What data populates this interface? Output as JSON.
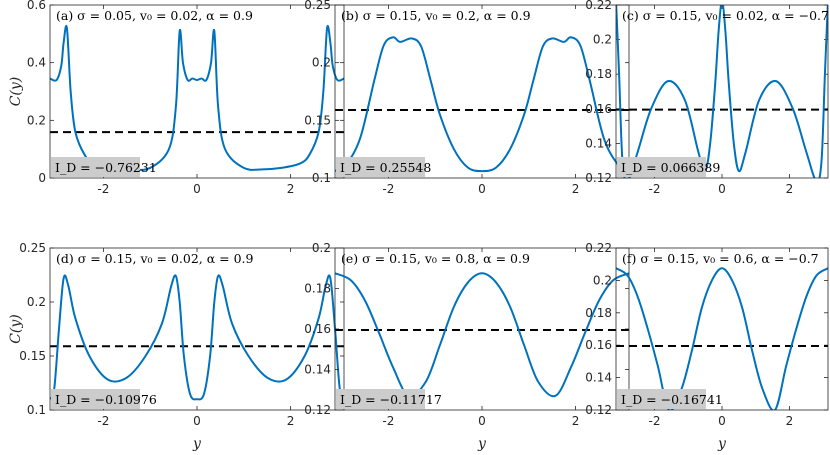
{
  "xlabel": "y",
  "ylabel": "C(y)",
  "colors": {
    "curve": "#0072BD",
    "reference": "#000000",
    "id_box": "#cccccc"
  },
  "chart_data": [
    {
      "type": "line",
      "title": "(a) σ = 0.05,  v₀ = 0.02,  α = 0.9",
      "id_label": "I_D = −0.76231",
      "xlim": [
        -3.1416,
        3.1416
      ],
      "ylim": [
        0,
        0.6
      ],
      "xticks": [
        -2,
        0,
        2
      ],
      "yticks": [
        0,
        0.2,
        0.4,
        0.6
      ],
      "ytick_labels": [
        "0",
        "0.2",
        "0.4",
        "0.6"
      ],
      "reference_y": 0.159,
      "x": [
        -3.14,
        -3.0,
        -2.9,
        -2.85,
        -2.78,
        -2.7,
        -2.6,
        -2.4,
        -2.2,
        -1.8,
        -1.4,
        -1.0,
        -0.6,
        -0.45,
        -0.37,
        -0.3,
        -0.2,
        -0.1,
        0,
        0.1,
        0.2,
        0.3,
        0.37,
        0.45,
        0.6,
        1.0,
        1.4,
        1.8,
        2.2,
        2.4,
        2.6,
        2.7,
        2.78,
        2.85,
        2.9,
        3.0,
        3.14
      ],
      "y": [
        0.345,
        0.34,
        0.39,
        0.47,
        0.52,
        0.3,
        0.16,
        0.08,
        0.05,
        0.035,
        0.03,
        0.035,
        0.1,
        0.25,
        0.51,
        0.4,
        0.34,
        0.345,
        0.34,
        0.345,
        0.34,
        0.4,
        0.51,
        0.25,
        0.1,
        0.035,
        0.03,
        0.035,
        0.05,
        0.08,
        0.16,
        0.3,
        0.52,
        0.47,
        0.39,
        0.34,
        0.345
      ],
      "ylabel_shown": true,
      "xlabel_shown": false
    },
    {
      "type": "line",
      "title": "(b) σ = 0.15,  v₀ = 0.2,  α = 0.9",
      "id_label": "I_D = 0.25548",
      "xlim": [
        -3.1416,
        3.1416
      ],
      "ylim": [
        0.1,
        0.25
      ],
      "xticks": [
        -2,
        0,
        2
      ],
      "yticks": [
        0.1,
        0.15,
        0.2,
        0.25
      ],
      "ytick_labels": [
        "0.1",
        "0.15",
        "0.2",
        "0.25"
      ],
      "reference_y": 0.159,
      "x": [
        -3.14,
        -2.9,
        -2.6,
        -2.3,
        -2.1,
        -1.9,
        -1.75,
        -1.5,
        -1.3,
        -1.1,
        -0.9,
        -0.6,
        -0.3,
        0,
        0.3,
        0.6,
        0.9,
        1.1,
        1.3,
        1.5,
        1.75,
        1.9,
        2.1,
        2.3,
        2.6,
        2.9,
        3.14
      ],
      "y": [
        0.106,
        0.112,
        0.135,
        0.185,
        0.215,
        0.222,
        0.218,
        0.221,
        0.214,
        0.185,
        0.155,
        0.125,
        0.109,
        0.106,
        0.109,
        0.125,
        0.155,
        0.185,
        0.214,
        0.221,
        0.218,
        0.222,
        0.215,
        0.185,
        0.135,
        0.112,
        0.106
      ],
      "ylabel_shown": false,
      "xlabel_shown": false
    },
    {
      "type": "line",
      "title": "(c) σ = 0.15,  v₀ = 0.02,  α = −0.7",
      "id_label": "I_D = 0.066389",
      "xlim": [
        -3.1416,
        3.1416
      ],
      "ylim": [
        0.12,
        0.22
      ],
      "xticks": [
        -2,
        0,
        2
      ],
      "yticks": [
        0.12,
        0.14,
        0.16,
        0.18,
        0.2,
        0.22
      ],
      "ytick_labels": [
        "0.12",
        "0.14",
        "0.16",
        "0.18",
        "0.2",
        "0.22"
      ],
      "reference_y": 0.1595,
      "x": [
        -3.14,
        -3.05,
        -2.95,
        -2.8,
        -2.5,
        -2.1,
        -1.6,
        -1.1,
        -0.7,
        -0.5,
        -0.35,
        -0.2,
        -0.1,
        0,
        0.1,
        0.2,
        0.35,
        0.5,
        0.7,
        1.1,
        1.6,
        2.1,
        2.5,
        2.8,
        2.95,
        3.05,
        3.14
      ],
      "y": [
        0.222,
        0.18,
        0.13,
        0.118,
        0.135,
        0.16,
        0.176,
        0.165,
        0.135,
        0.124,
        0.14,
        0.175,
        0.205,
        0.222,
        0.205,
        0.175,
        0.14,
        0.124,
        0.135,
        0.165,
        0.176,
        0.16,
        0.135,
        0.118,
        0.13,
        0.18,
        0.222
      ],
      "ylabel_shown": false,
      "xlabel_shown": false
    },
    {
      "type": "line",
      "title": "(d) σ = 0.15,  v₀ = 0.02,  α = 0.9",
      "id_label": "I_D = −0.10976",
      "xlim": [
        -3.1416,
        3.1416
      ],
      "ylim": [
        0.1,
        0.25
      ],
      "xticks": [
        -2,
        0,
        2
      ],
      "yticks": [
        0.1,
        0.15,
        0.2,
        0.25
      ],
      "ytick_labels": [
        "0.1",
        "0.15",
        "0.2",
        "0.25"
      ],
      "reference_y": 0.159,
      "x": [
        -3.14,
        -3.05,
        -2.95,
        -2.85,
        -2.75,
        -2.6,
        -2.3,
        -1.9,
        -1.5,
        -1.1,
        -0.75,
        -0.55,
        -0.45,
        -0.37,
        -0.28,
        -0.15,
        0,
        0.15,
        0.28,
        0.37,
        0.45,
        0.55,
        0.75,
        1.1,
        1.5,
        1.9,
        2.3,
        2.6,
        2.75,
        2.85,
        2.95,
        3.05,
        3.14
      ],
      "y": [
        0.11,
        0.12,
        0.175,
        0.222,
        0.215,
        0.185,
        0.15,
        0.128,
        0.13,
        0.15,
        0.18,
        0.215,
        0.224,
        0.2,
        0.15,
        0.115,
        0.11,
        0.115,
        0.15,
        0.2,
        0.224,
        0.215,
        0.18,
        0.15,
        0.13,
        0.128,
        0.15,
        0.185,
        0.215,
        0.222,
        0.175,
        0.12,
        0.11
      ],
      "ylabel_shown": true,
      "xlabel_shown": true
    },
    {
      "type": "line",
      "title": "(e) σ = 0.15,  v₀ = 0.8,  α = 0.9",
      "id_label": "I_D = −0.11717",
      "xlim": [
        -3.1416,
        3.1416
      ],
      "ylim": [
        0.12,
        0.2
      ],
      "xticks": [
        -2,
        0,
        2
      ],
      "yticks": [
        0.12,
        0.14,
        0.16,
        0.18,
        0.2
      ],
      "ytick_labels": [
        "0.12",
        "0.14",
        "0.16",
        "0.18",
        "0.2"
      ],
      "reference_y": 0.1595,
      "x": [
        -3.14,
        -2.8,
        -2.5,
        -2.2,
        -1.9,
        -1.57,
        -1.2,
        -0.9,
        -0.6,
        -0.3,
        0,
        0.3,
        0.6,
        0.9,
        1.2,
        1.57,
        1.9,
        2.2,
        2.5,
        2.8,
        3.14
      ],
      "y": [
        0.1875,
        0.184,
        0.174,
        0.158,
        0.141,
        0.127,
        0.134,
        0.152,
        0.171,
        0.183,
        0.1875,
        0.183,
        0.171,
        0.152,
        0.134,
        0.127,
        0.141,
        0.158,
        0.174,
        0.184,
        0.1875
      ],
      "ylabel_shown": false,
      "xlabel_shown": true
    },
    {
      "type": "line",
      "title": "(f) σ = 0.15,  v₀ = 0.6,  α = −0.7",
      "id_label": "I_D = −0.16741",
      "xlim": [
        -3.1416,
        3.1416
      ],
      "ylim": [
        0.12,
        0.22
      ],
      "xticks": [
        -2,
        0,
        2
      ],
      "yticks": [
        0.12,
        0.14,
        0.16,
        0.18,
        0.2,
        0.22
      ],
      "ytick_labels": [
        "0.12",
        "0.14",
        "0.16",
        "0.18",
        "0.2",
        "0.22"
      ],
      "reference_y": 0.1595,
      "x": [
        -3.14,
        -2.8,
        -2.5,
        -2.2,
        -1.9,
        -1.57,
        -1.2,
        -0.9,
        -0.6,
        -0.3,
        0,
        0.3,
        0.6,
        0.9,
        1.2,
        1.57,
        1.9,
        2.2,
        2.5,
        2.8,
        3.14
      ],
      "y": [
        0.2075,
        0.203,
        0.19,
        0.17,
        0.147,
        0.12,
        0.133,
        0.156,
        0.183,
        0.2,
        0.2075,
        0.2,
        0.183,
        0.156,
        0.133,
        0.12,
        0.147,
        0.17,
        0.19,
        0.203,
        0.2075
      ],
      "ylabel_shown": false,
      "xlabel_shown": true
    }
  ]
}
